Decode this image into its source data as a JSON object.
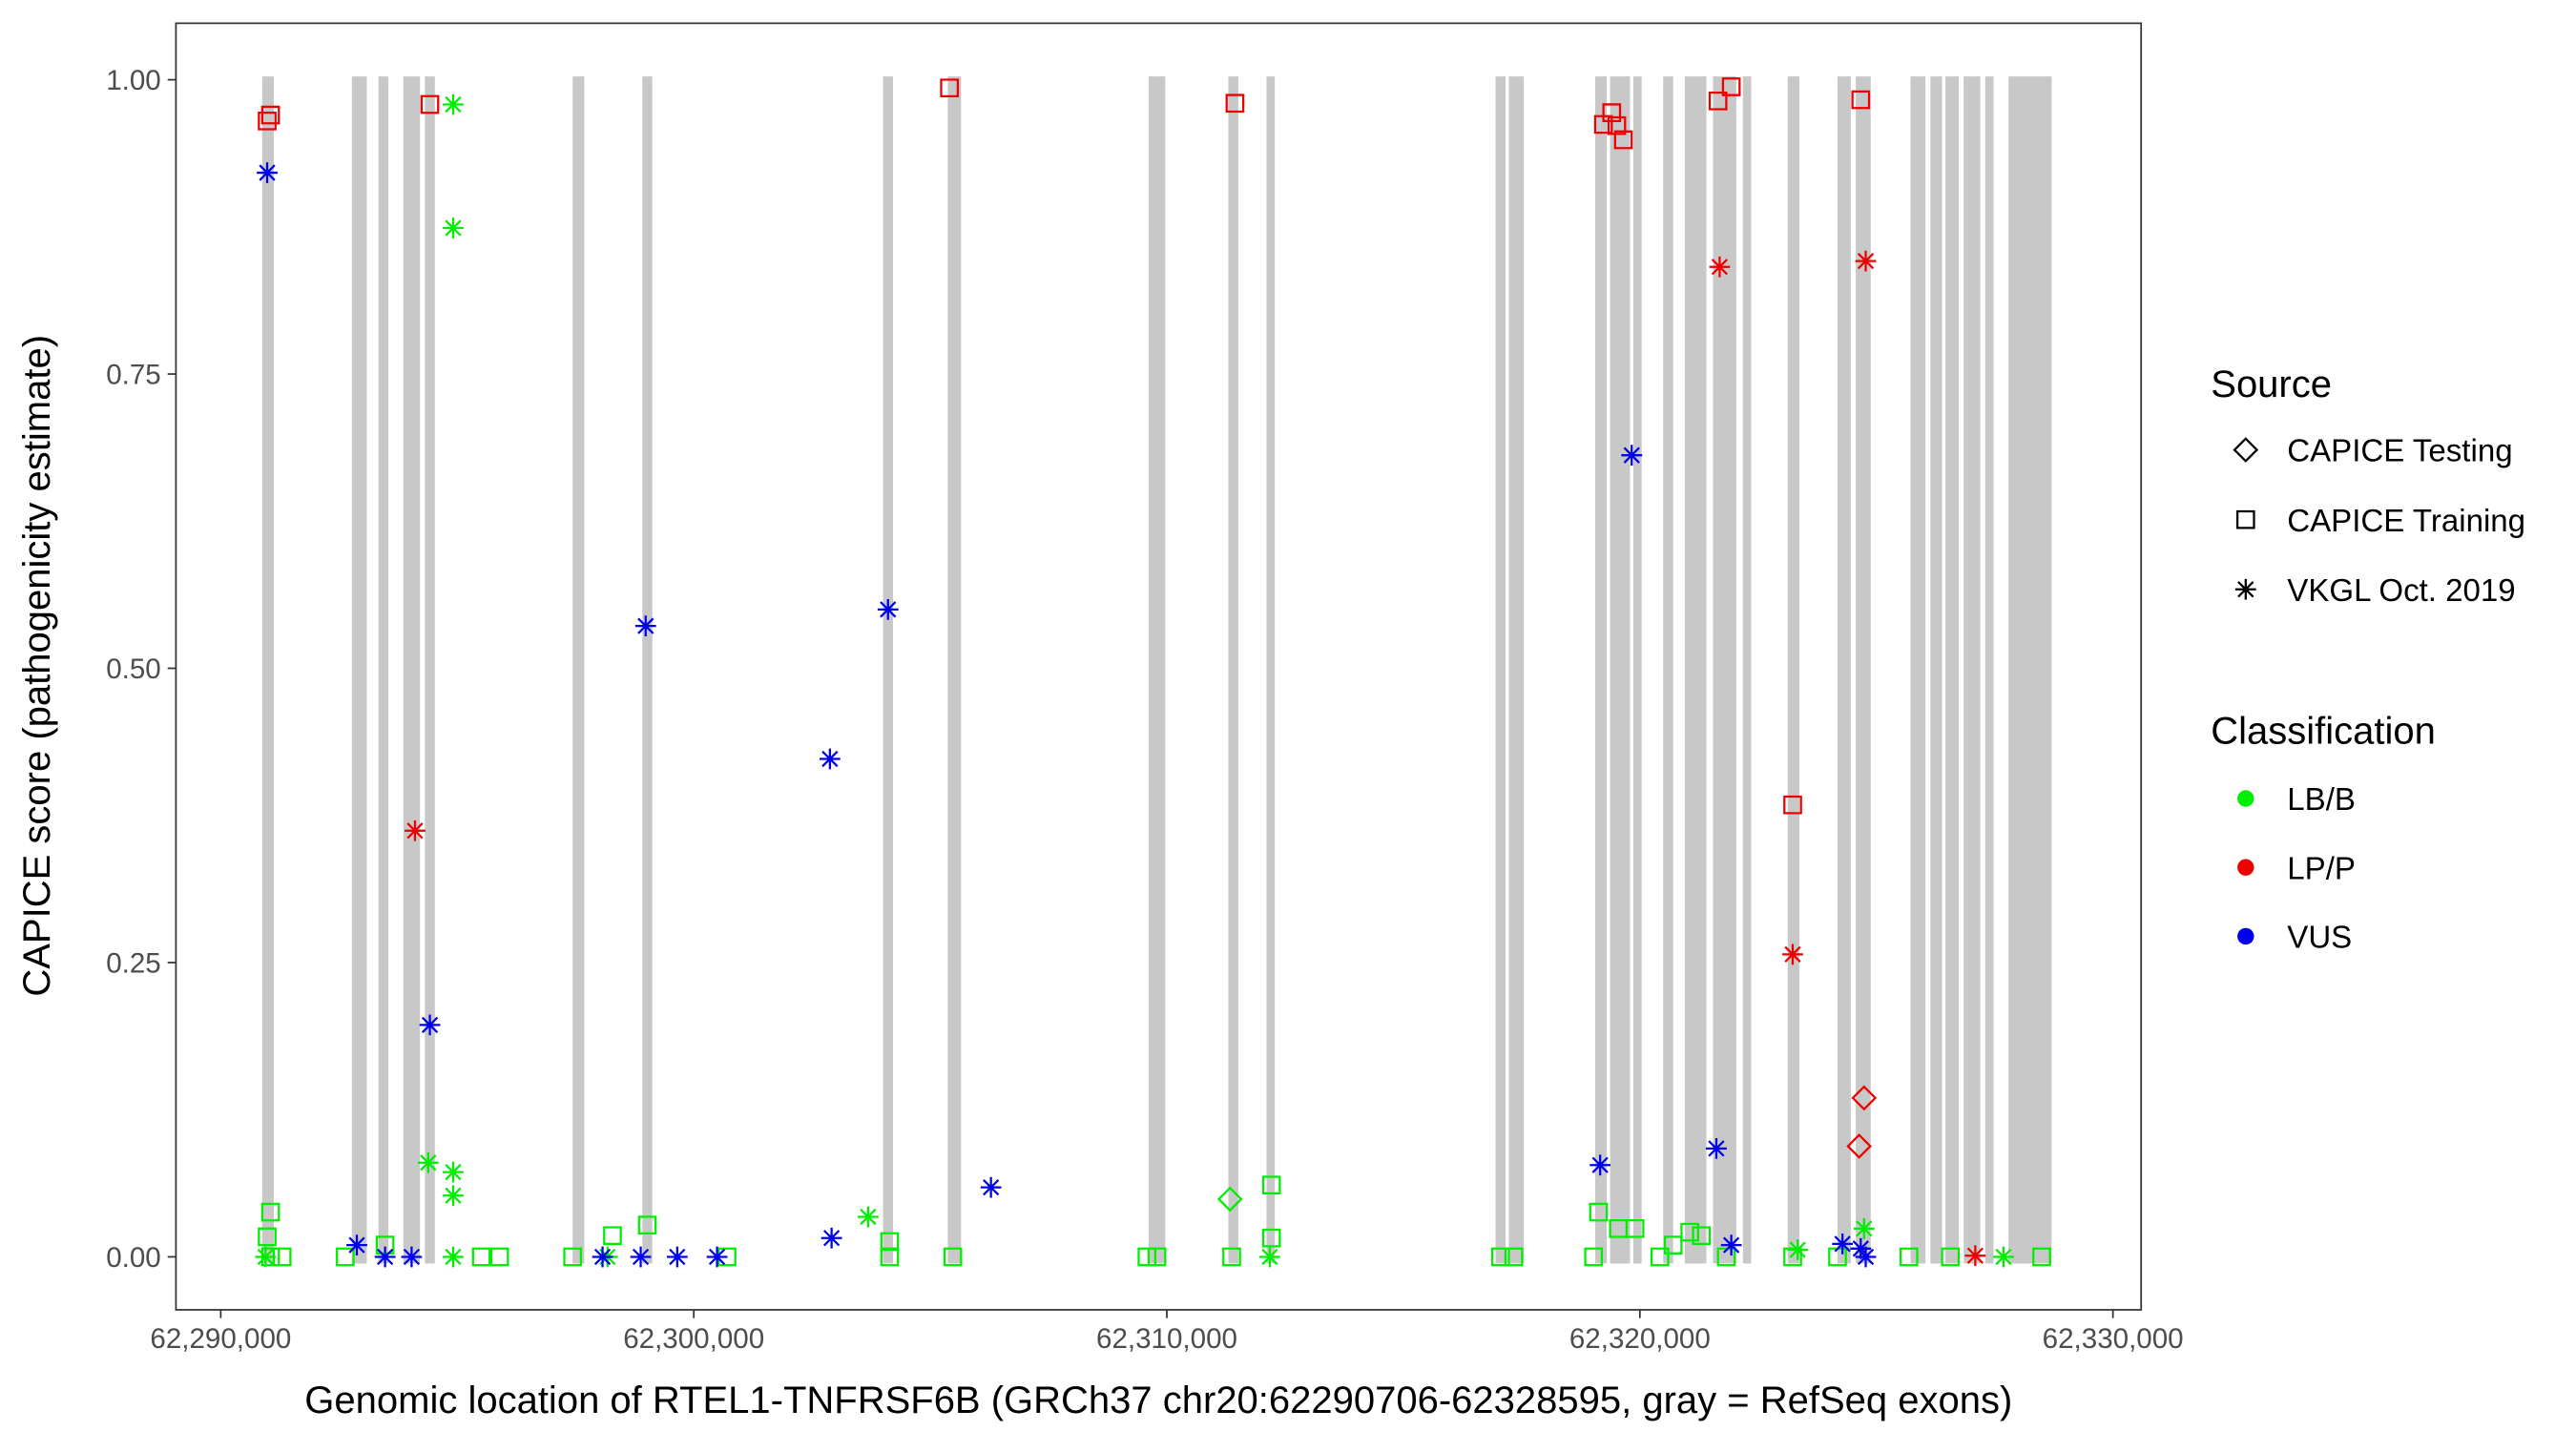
{
  "chart_data": {
    "type": "scatter",
    "x_label": "Genomic location of RTEL1-TNFRSF6B (GRCh37 chr20:62290706-62328595, gray = RefSeq exons)",
    "y_label": "CAPICE score (pathogenicity estimate)",
    "xlim": [
      62289053,
      62330596
    ],
    "ylim": [
      -0.045,
      1.048
    ],
    "xticks": [
      {
        "value": 62290000,
        "label": "62,290,000"
      },
      {
        "value": 62300000,
        "label": "62,300,000"
      },
      {
        "value": 62310000,
        "label": "62,310,000"
      },
      {
        "value": 62320000,
        "label": "62,320,000"
      },
      {
        "value": 62330000,
        "label": "62,330,000"
      }
    ],
    "yticks": [
      {
        "value": 0,
        "label": "0.00"
      },
      {
        "value": 0.25,
        "label": "0.25"
      },
      {
        "value": 0.5,
        "label": "0.50"
      },
      {
        "value": 0.75,
        "label": "0.75"
      },
      {
        "value": 1,
        "label": "1.00"
      }
    ],
    "exon_color": "#c8c8c8",
    "exons": [
      [
        62290877,
        62291123
      ],
      [
        62292772,
        62293088
      ],
      [
        62293334,
        62293544
      ],
      [
        62293860,
        62294211
      ],
      [
        62294316,
        62294527
      ],
      [
        62297439,
        62297685
      ],
      [
        62298913,
        62299123
      ],
      [
        62304001,
        62304211
      ],
      [
        62305369,
        62305650
      ],
      [
        62309615,
        62309966
      ],
      [
        62311300,
        62311510
      ],
      [
        62312107,
        62312282
      ],
      [
        62316949,
        62317160
      ],
      [
        62317230,
        62317546
      ],
      [
        62319055,
        62319300
      ],
      [
        62319370,
        62319791
      ],
      [
        62319862,
        62320037
      ],
      [
        62320493,
        62320704
      ],
      [
        62320949,
        62321406
      ],
      [
        62321546,
        62322037
      ],
      [
        62322178,
        62322353
      ],
      [
        62323125,
        62323371
      ],
      [
        62324178,
        62324458
      ],
      [
        62324564,
        62324879
      ],
      [
        62325722,
        62326037
      ],
      [
        62326143,
        62326388
      ],
      [
        62326459,
        62326739
      ],
      [
        62326845,
        62327195
      ],
      [
        62327300,
        62327476
      ],
      [
        62327792,
        62328704
      ]
    ],
    "legend_source": {
      "title": "Source",
      "items": [
        {
          "name": "CAPICE Testing",
          "marker": "diamond"
        },
        {
          "name": "CAPICE Training",
          "marker": "square"
        },
        {
          "name": "VKGL Oct. 2019",
          "marker": "asterisk"
        }
      ]
    },
    "legend_classification": {
      "title": "Classification",
      "items": [
        {
          "name": "LB/B",
          "color": "#00ee00"
        },
        {
          "name": "LP/P",
          "color": "#ee0000"
        },
        {
          "name": "VUS",
          "color": "#0000ee"
        }
      ]
    },
    "series": [
      {
        "source": "CAPICE Training",
        "classification": "LP/P",
        "x": [
          62290982,
          62291053,
          62294421,
          62305405,
          62311440,
          62319230,
          62319405,
          62319511,
          62319651,
          62321651,
          62321932,
          62324669,
          62323230
        ],
        "values": [
          0.965,
          0.97,
          0.979,
          0.993,
          0.98,
          0.962,
          0.972,
          0.961,
          0.949,
          0.982,
          0.994,
          0.983,
          0.384
        ]
      },
      {
        "source": "CAPICE Testing",
        "classification": "LP/P",
        "x": [
          62324739,
          62324634
        ],
        "values": [
          0.135,
          0.094
        ]
      },
      {
        "source": "VKGL Oct. 2019",
        "classification": "LP/P",
        "x": [
          62294106,
          62321686,
          62324774,
          62323230,
          62327090
        ],
        "values": [
          0.362,
          0.841,
          0.846,
          0.257,
          0.001
        ]
      },
      {
        "source": "VKGL Oct. 2019",
        "classification": "LB/B",
        "x": [
          62294913,
          62294913,
          62294386,
          62294913,
          62294913,
          62303685,
          62324739,
          62290947,
          62294913,
          62298176,
          62312177,
          62323336,
          62327687
        ],
        "values": [
          0.979,
          0.874,
          0.08,
          0.072,
          0.052,
          0.034,
          0.024,
          0,
          0,
          0,
          0,
          0.006,
          0
        ]
      },
      {
        "source": "CAPICE Testing",
        "classification": "LB/B",
        "x": [
          62311335
        ],
        "values": [
          0.049
        ]
      },
      {
        "source": "CAPICE Training",
        "classification": "LB/B",
        "x": [
          62291053,
          62290982,
          62291053,
          62291298,
          62292632,
          62293474,
          62295509,
          62295895,
          62297439,
          62298281,
          62299018,
          62300702,
          62304141,
          62304141,
          62305475,
          62309580,
          62309791,
          62311370,
          62312212,
          62312212,
          62317054,
          62317335,
          62319125,
          62319546,
          62319897,
          62319020,
          62320704,
          62321055,
          62321300,
          62320423,
          62321827,
          62323230,
          62324178,
          62325687,
          62326564,
          62328494
        ],
        "values": [
          0.038,
          0.017,
          0,
          0,
          0,
          0.01,
          0,
          0,
          0,
          0.018,
          0.027,
          0,
          0.013,
          0,
          0,
          0,
          0,
          0,
          0.061,
          0.016,
          0,
          0,
          0.038,
          0.024,
          0.024,
          0,
          0.01,
          0.021,
          0.018,
          0,
          0,
          0,
          0,
          0,
          0,
          0
        ]
      },
      {
        "source": "VKGL Oct. 2019",
        "classification": "VUS",
        "x": [
          62290982,
          62298983,
          62304106,
          62302878,
          62319827,
          62294421,
          62306282,
          62319160,
          62321616,
          62302913,
          62292877,
          62293474,
          62294035,
          62298071,
          62298878,
          62299650,
          62300492,
          62321932,
          62324283,
          62324669,
          62324774
        ],
        "values": [
          0.921,
          0.536,
          0.55,
          0.423,
          0.681,
          0.197,
          0.059,
          0.078,
          0.092,
          0.016,
          0.01,
          0,
          0,
          0,
          0,
          0,
          0,
          0.01,
          0.011,
          0.007,
          0
        ]
      }
    ]
  }
}
